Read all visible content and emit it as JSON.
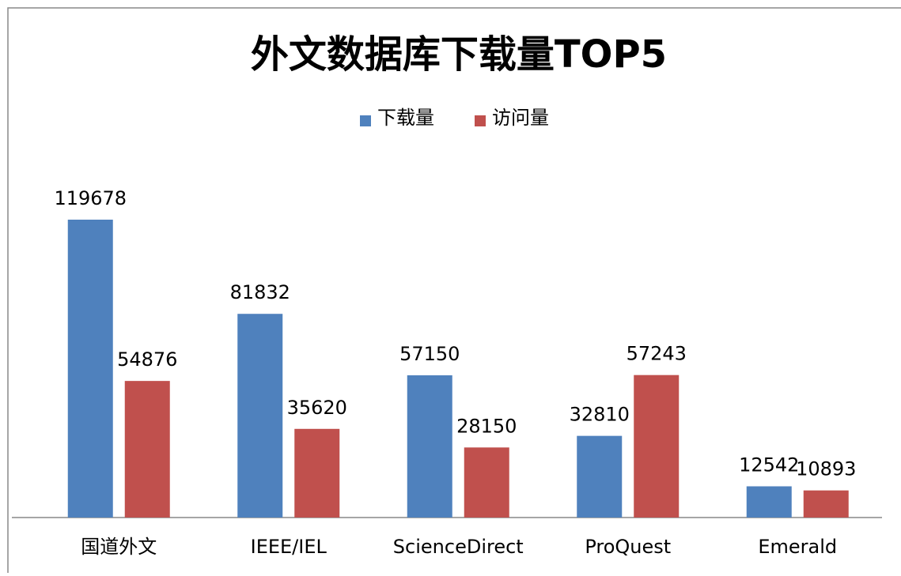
{
  "chart_data": {
    "type": "bar",
    "title": "外文数据库下载量TOP5",
    "categories": [
      "国道外文",
      "IEEE/IEL",
      "ScienceDirect",
      "ProQuest",
      "Emerald"
    ],
    "series": [
      {
        "name": "下载量",
        "color": "#4f81bd",
        "values": [
          119678,
          81832,
          57150,
          32810,
          12542
        ]
      },
      {
        "name": "访问量",
        "color": "#c0504d",
        "values": [
          54876,
          35620,
          28150,
          57243,
          10893
        ]
      }
    ],
    "legend": "top"
  }
}
